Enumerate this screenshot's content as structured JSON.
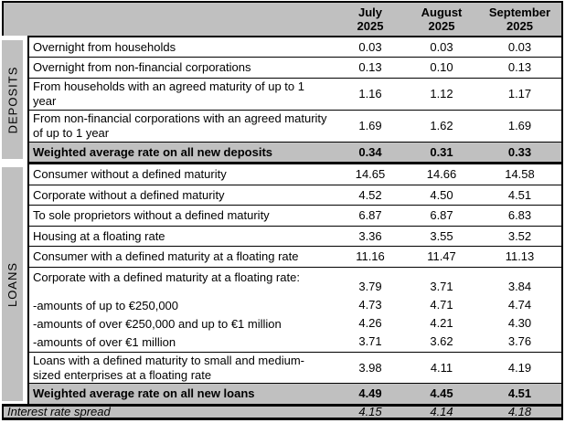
{
  "table": {
    "columns": [
      {
        "line1": "July",
        "line2": "2025"
      },
      {
        "line1": "August",
        "line2": "2025"
      },
      {
        "line1": "September",
        "line2": "2025"
      }
    ],
    "sections": [
      {
        "name": "DEPOSITS",
        "rows": [
          {
            "label": "Overnight from households",
            "values": [
              "0.03",
              "0.03",
              "0.03"
            ]
          },
          {
            "label": "Overnight from non-financial corporations",
            "values": [
              "0.13",
              "0.10",
              "0.13"
            ]
          },
          {
            "label": "From households with an agreed maturity of up to 1 year",
            "values": [
              "1.16",
              "1.12",
              "1.17"
            ]
          },
          {
            "label": "From non-financial corporations with an agreed maturity of up to 1 year",
            "values": [
              "1.69",
              "1.62",
              "1.69"
            ]
          },
          {
            "label": "Weighted average rate on all new deposits",
            "values": [
              "0.34",
              "0.31",
              "0.33"
            ]
          }
        ]
      },
      {
        "name": "LOANS",
        "rows": [
          {
            "label": "Consumer without a defined maturity",
            "values": [
              "14.65",
              "14.66",
              "14.58"
            ]
          },
          {
            "label": "Corporate without a defined maturity",
            "values": [
              "4.52",
              "4.50",
              "4.51"
            ]
          },
          {
            "label": "To sole proprietors without a defined maturity",
            "values": [
              "6.87",
              "6.87",
              "6.83"
            ]
          },
          {
            "label": "Housing at a floating rate",
            "values": [
              "3.36",
              "3.55",
              "3.52"
            ]
          },
          {
            "label": "Consumer with a defined maturity at a floating rate",
            "values": [
              "11.16",
              "11.47",
              "11.13"
            ]
          },
          {
            "label": "Corporate with a defined maturity at a floating rate:",
            "values": [
              "3.79",
              "3.71",
              "3.84"
            ],
            "sub_rows": [
              {
                "label": "-amounts of up to €250,000",
                "values": [
                  "4.73",
                  "4.71",
                  "4.74"
                ]
              },
              {
                "label": "-amounts of over €250,000 and up to €1 million",
                "values": [
                  "4.26",
                  "4.21",
                  "4.30"
                ]
              },
              {
                "label": "-amounts of over €1 million",
                "values": [
                  "3.71",
                  "3.62",
                  "3.76"
                ]
              }
            ]
          },
          {
            "label": "Loans with a defined maturity to small and medium-sized enterprises at a floating rate",
            "values": [
              "3.98",
              "4.11",
              "4.19"
            ]
          },
          {
            "label": "Weighted average rate on all new loans",
            "values": [
              "4.49",
              "4.45",
              "4.51"
            ]
          }
        ]
      }
    ],
    "footer": {
      "label": "Interest rate spread",
      "values": [
        "4.15",
        "4.14",
        "4.18"
      ]
    },
    "colors": {
      "header_bg": "#c0c0c0",
      "emphasis_row_bg": "#c0c0c0",
      "border": "#000000",
      "body_bg": "#ffffff"
    }
  }
}
